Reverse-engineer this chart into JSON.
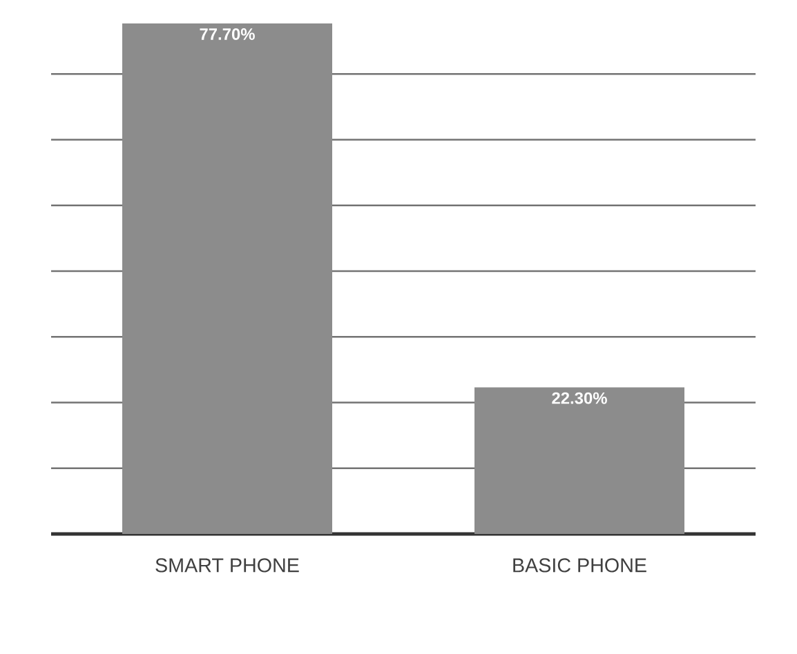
{
  "chart_data": {
    "type": "bar",
    "categories": [
      "SMART PHONE",
      "BASIC PHONE"
    ],
    "values": [
      77.7,
      22.3
    ],
    "value_labels": [
      "77.70%",
      "22.30%"
    ],
    "color": "#8c8c8c",
    "grid": "y",
    "tick_labels": "x"
  }
}
